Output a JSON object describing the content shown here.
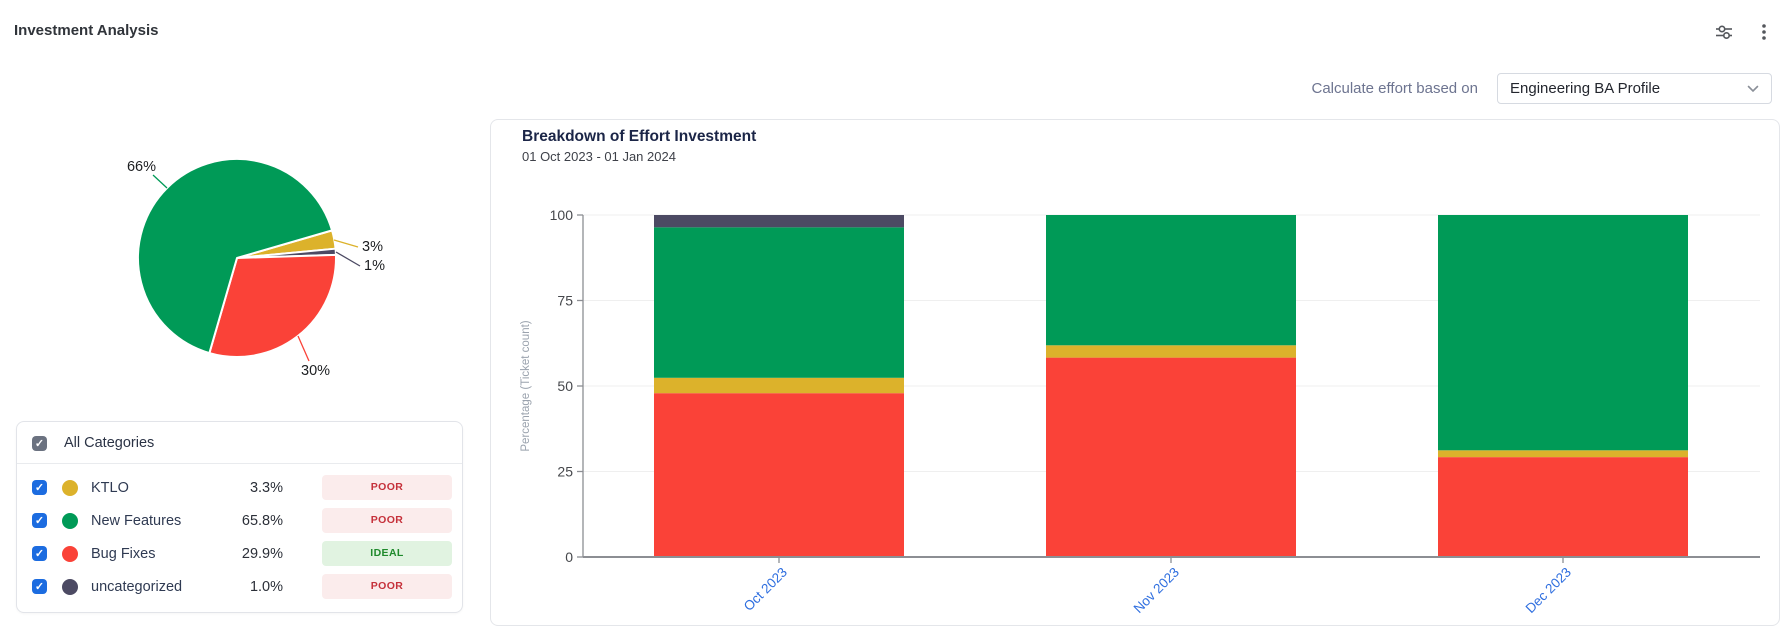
{
  "page": {
    "title": "Investment Analysis"
  },
  "toolbar": {
    "filter_icon": "sliders-icon",
    "menu_icon": "kebab-menu-icon"
  },
  "controls": {
    "label": "Calculate effort based on",
    "dropdown_value": "Engineering BA Profile"
  },
  "colors": {
    "ktlo": "#dcb22b",
    "new_features": "#009a57",
    "bug_fixes": "#fa4238",
    "uncategorized": "#4c4a63",
    "checkbox_blue": "#1c6ce0",
    "checkbox_gray": "#6b7280",
    "poor_text": "#c5303a",
    "poor_bg": "#fbecec",
    "ideal_text": "#1f8a2c",
    "ideal_bg": "#e1f3e1",
    "x_label_blue": "#2e6edf"
  },
  "categories": {
    "header": "All Categories",
    "rows": [
      {
        "label": "KTLO",
        "pct": "3.3%",
        "status": "POOR",
        "status_type": "poor",
        "color": "#dcb22b"
      },
      {
        "label": "New Features",
        "pct": "65.8%",
        "status": "POOR",
        "status_type": "poor",
        "color": "#009a57"
      },
      {
        "label": "Bug Fixes",
        "pct": "29.9%",
        "status": "IDEAL",
        "status_type": "ideal",
        "color": "#fa4238"
      },
      {
        "label": "uncategorized",
        "pct": "1.0%",
        "status": "POOR",
        "status_type": "poor",
        "color": "#4c4a63"
      }
    ]
  },
  "chart_data": [
    {
      "type": "pie",
      "title": "",
      "slices": [
        {
          "label": "KTLO",
          "value": 3,
          "display": "3%",
          "color": "#dcb22b"
        },
        {
          "label": "uncategorized",
          "value": 1,
          "display": "1%",
          "color": "#4c4a63"
        },
        {
          "label": "Bug Fixes",
          "value": 30,
          "display": "30%",
          "color": "#fa4238"
        },
        {
          "label": "New Features",
          "value": 66,
          "display": "66%",
          "color": "#009a57"
        }
      ],
      "start_angle_deg": 16.2,
      "direction": "clockwise"
    },
    {
      "type": "bar",
      "stacked": true,
      "title": "Breakdown of Effort Investment",
      "subtitle": "01 Oct 2023 - 01 Jan 2024",
      "ylabel": "Percentage (Ticket count)",
      "xlabel": "",
      "categories": [
        "Oct 2023",
        "Nov 2023",
        "Dec 2023"
      ],
      "yticks": [
        0,
        25,
        50,
        75,
        100
      ],
      "ylim": [
        0,
        100
      ],
      "grid": true,
      "legend_position": "none",
      "series": [
        {
          "name": "Bug Fixes",
          "color": "#fa4238",
          "values": [
            47.9,
            58.3,
            29.2
          ]
        },
        {
          "name": "KTLO",
          "color": "#dcb22b",
          "values": [
            4.5,
            3.6,
            2.0
          ]
        },
        {
          "name": "New Features",
          "color": "#009a57",
          "values": [
            44.0,
            38.1,
            68.8
          ]
        },
        {
          "name": "uncategorized",
          "color": "#4c4a63",
          "values": [
            3.6,
            0,
            0
          ]
        }
      ]
    }
  ]
}
